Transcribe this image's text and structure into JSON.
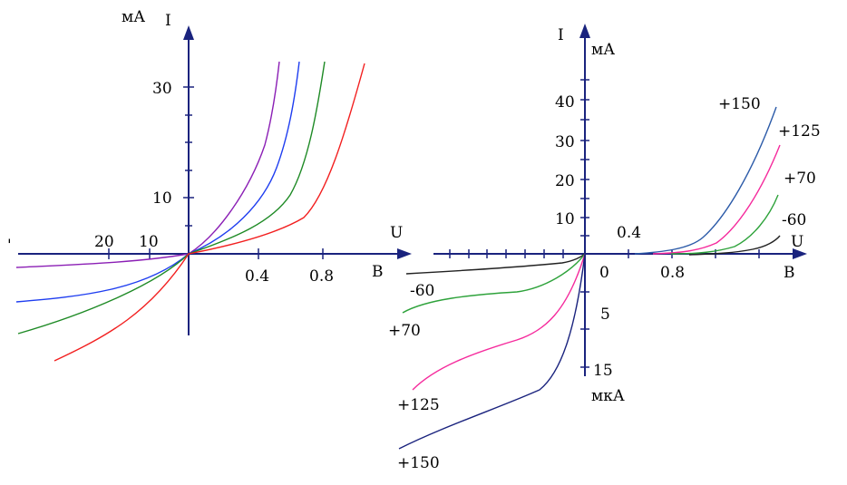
{
  "chart_data": [
    {
      "type": "line",
      "panel": "left",
      "xlabel": "U",
      "x_unit": "В",
      "ylabel": "I",
      "y_unit": "мА",
      "x_ticks_pos": [
        "0.4",
        "0.8"
      ],
      "x_ticks_neg": [
        "20",
        "10"
      ],
      "y_ticks": [
        "30",
        "10"
      ],
      "series": [
        {
          "color": "#8b1fb5",
          "points": [
            [
              -10,
              -0.55
            ],
            [
              0,
              0
            ],
            [
              0.2,
              10
            ],
            [
              0.35,
              20
            ],
            [
              0.5,
              35
            ]
          ]
        },
        {
          "color": "#1e3df0",
          "points": [
            [
              -10,
              -1.6
            ],
            [
              0,
              0
            ],
            [
              0.25,
              8
            ],
            [
              0.45,
              20
            ],
            [
              0.6,
              35
            ]
          ]
        },
        {
          "color": "#1e8a25",
          "points": [
            [
              -10,
              -2.6
            ],
            [
              0,
              0
            ],
            [
              0.3,
              6
            ],
            [
              0.55,
              18
            ],
            [
              0.75,
              35
            ]
          ]
        },
        {
          "color": "#f21f1f",
          "points": [
            [
              -8,
              -3.6
            ],
            [
              0,
              0
            ],
            [
              0.4,
              6
            ],
            [
              0.7,
              16
            ],
            [
              0.95,
              35
            ]
          ]
        }
      ]
    },
    {
      "type": "line",
      "panel": "right",
      "xlabel": "U",
      "x_unit": "В",
      "ylabel": "I",
      "y_unit_pos": "мА",
      "y_unit_neg": "мкА",
      "x_ticks_pos": [
        "0.4",
        "0.8"
      ],
      "x_zero": "0",
      "y_ticks_pos": [
        "40",
        "30",
        "20",
        "10"
      ],
      "y_ticks_neg": [
        "5",
        "15"
      ],
      "series": [
        {
          "name": "+150",
          "color": "#2b5aa8"
        },
        {
          "name": "+125",
          "color": "#f52a9c"
        },
        {
          "name": "+70",
          "color": "#2da23a"
        },
        {
          "name": "-60",
          "color": "#222222"
        }
      ]
    }
  ]
}
